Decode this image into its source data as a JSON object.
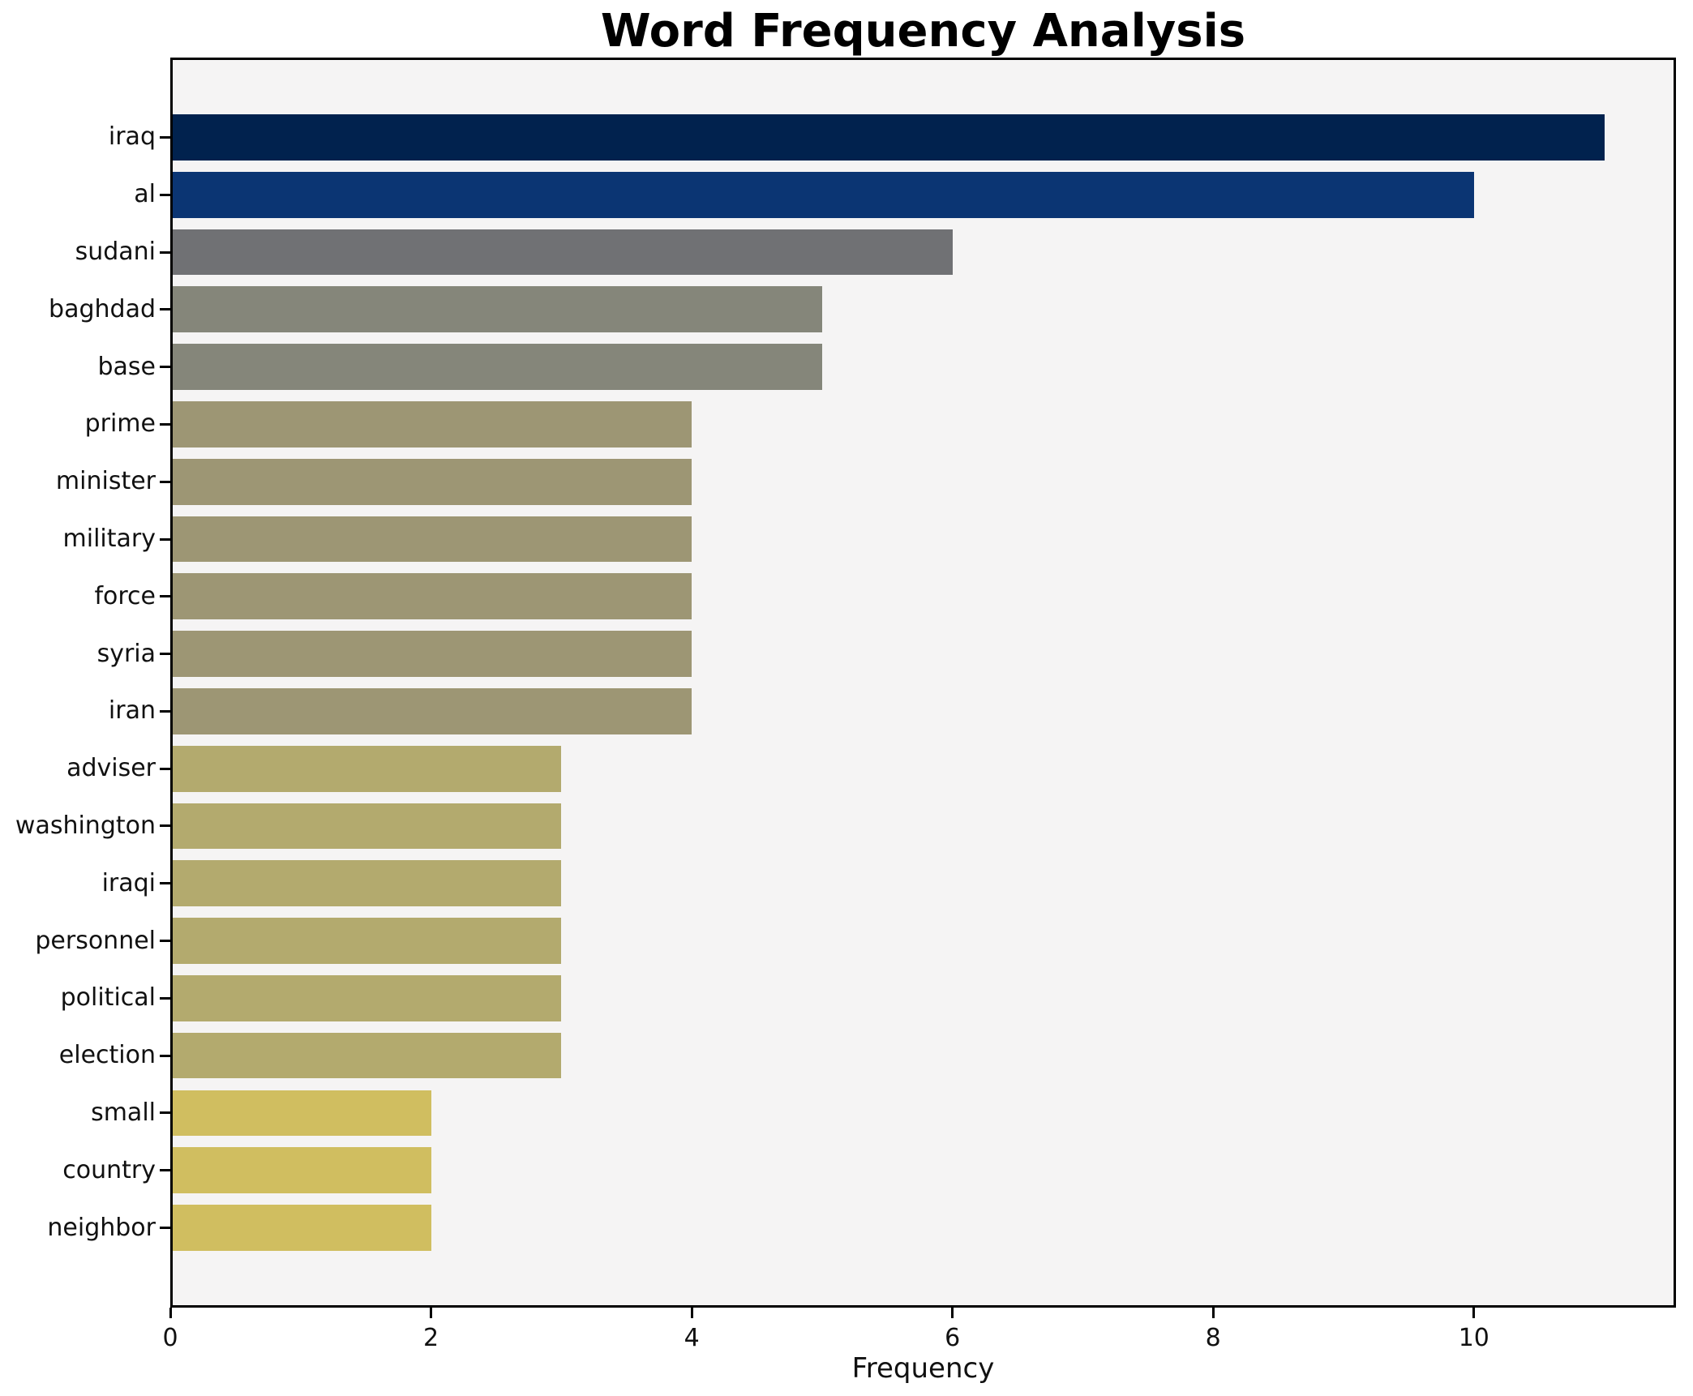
{
  "title": "Word Frequency Analysis",
  "chart_data": {
    "type": "bar",
    "orientation": "horizontal",
    "title": "Word Frequency Analysis",
    "xlabel": "Frequency",
    "ylabel": "",
    "categories": [
      "iraq",
      "al",
      "sudani",
      "baghdad",
      "base",
      "prime",
      "minister",
      "military",
      "force",
      "syria",
      "iran",
      "adviser",
      "washington",
      "iraqi",
      "personnel",
      "political",
      "election",
      "small",
      "country",
      "neighbor"
    ],
    "values": [
      11,
      10,
      6,
      5,
      5,
      4,
      4,
      4,
      4,
      4,
      4,
      3,
      3,
      3,
      3,
      3,
      3,
      2,
      2,
      2
    ],
    "bar_colors": [
      "#01224e",
      "#0b3573",
      "#707174",
      "#85867a",
      "#85867a",
      "#9d9674",
      "#9d9674",
      "#9d9674",
      "#9d9674",
      "#9d9674",
      "#9d9674",
      "#b3aa6e",
      "#b3aa6e",
      "#b3aa6e",
      "#b3aa6e",
      "#b3aa6e",
      "#b3aa6e",
      "#d0be60",
      "#d0be60",
      "#d0be60"
    ],
    "x_ticks": [
      0,
      2,
      4,
      6,
      8,
      10
    ],
    "xlim": [
      0,
      11.55
    ],
    "grid": false,
    "legend": null,
    "plot_background": "#f5f4f4",
    "figure_background": "#ffffff",
    "bar_height_frac": 0.8
  }
}
